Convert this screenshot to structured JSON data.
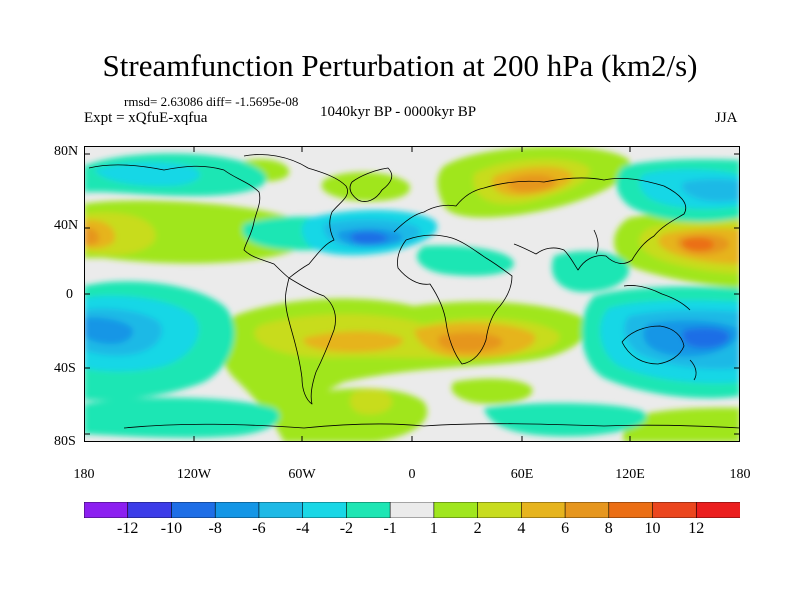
{
  "title": "Streamfunction Perturbation at 200 hPa (km2/s)",
  "stats": "rmsd= 2.63086 diff= -1.5695e-08",
  "experiment": "Expt = xQfuE-xqfua",
  "period": "1040kyr BP - 0000kyr BP",
  "season": "JJA",
  "map": {
    "projection": "cylindrical equidistant",
    "lat_ticks": [
      "80N",
      "40N",
      "0",
      "40S",
      "80S"
    ],
    "lon_ticks": [
      "180",
      "120W",
      "60W",
      "0",
      "60E",
      "120E",
      "180"
    ]
  },
  "colorbar": {
    "labels": [
      "-12",
      "-10",
      "-8",
      "-6",
      "-4",
      "-2",
      "-1",
      "1",
      "2",
      "4",
      "6",
      "8",
      "10",
      "12"
    ],
    "colors": [
      "#8c1ff0",
      "#3c3ce8",
      "#1e6ee6",
      "#1496e6",
      "#1eb9e6",
      "#19d7e6",
      "#1ee6b4",
      "#ebebeb",
      "#a0e61e",
      "#c8dc1e",
      "#e6b41e",
      "#e6961e",
      "#eb6e14",
      "#eb461e",
      "#eb1e1e"
    ]
  }
}
